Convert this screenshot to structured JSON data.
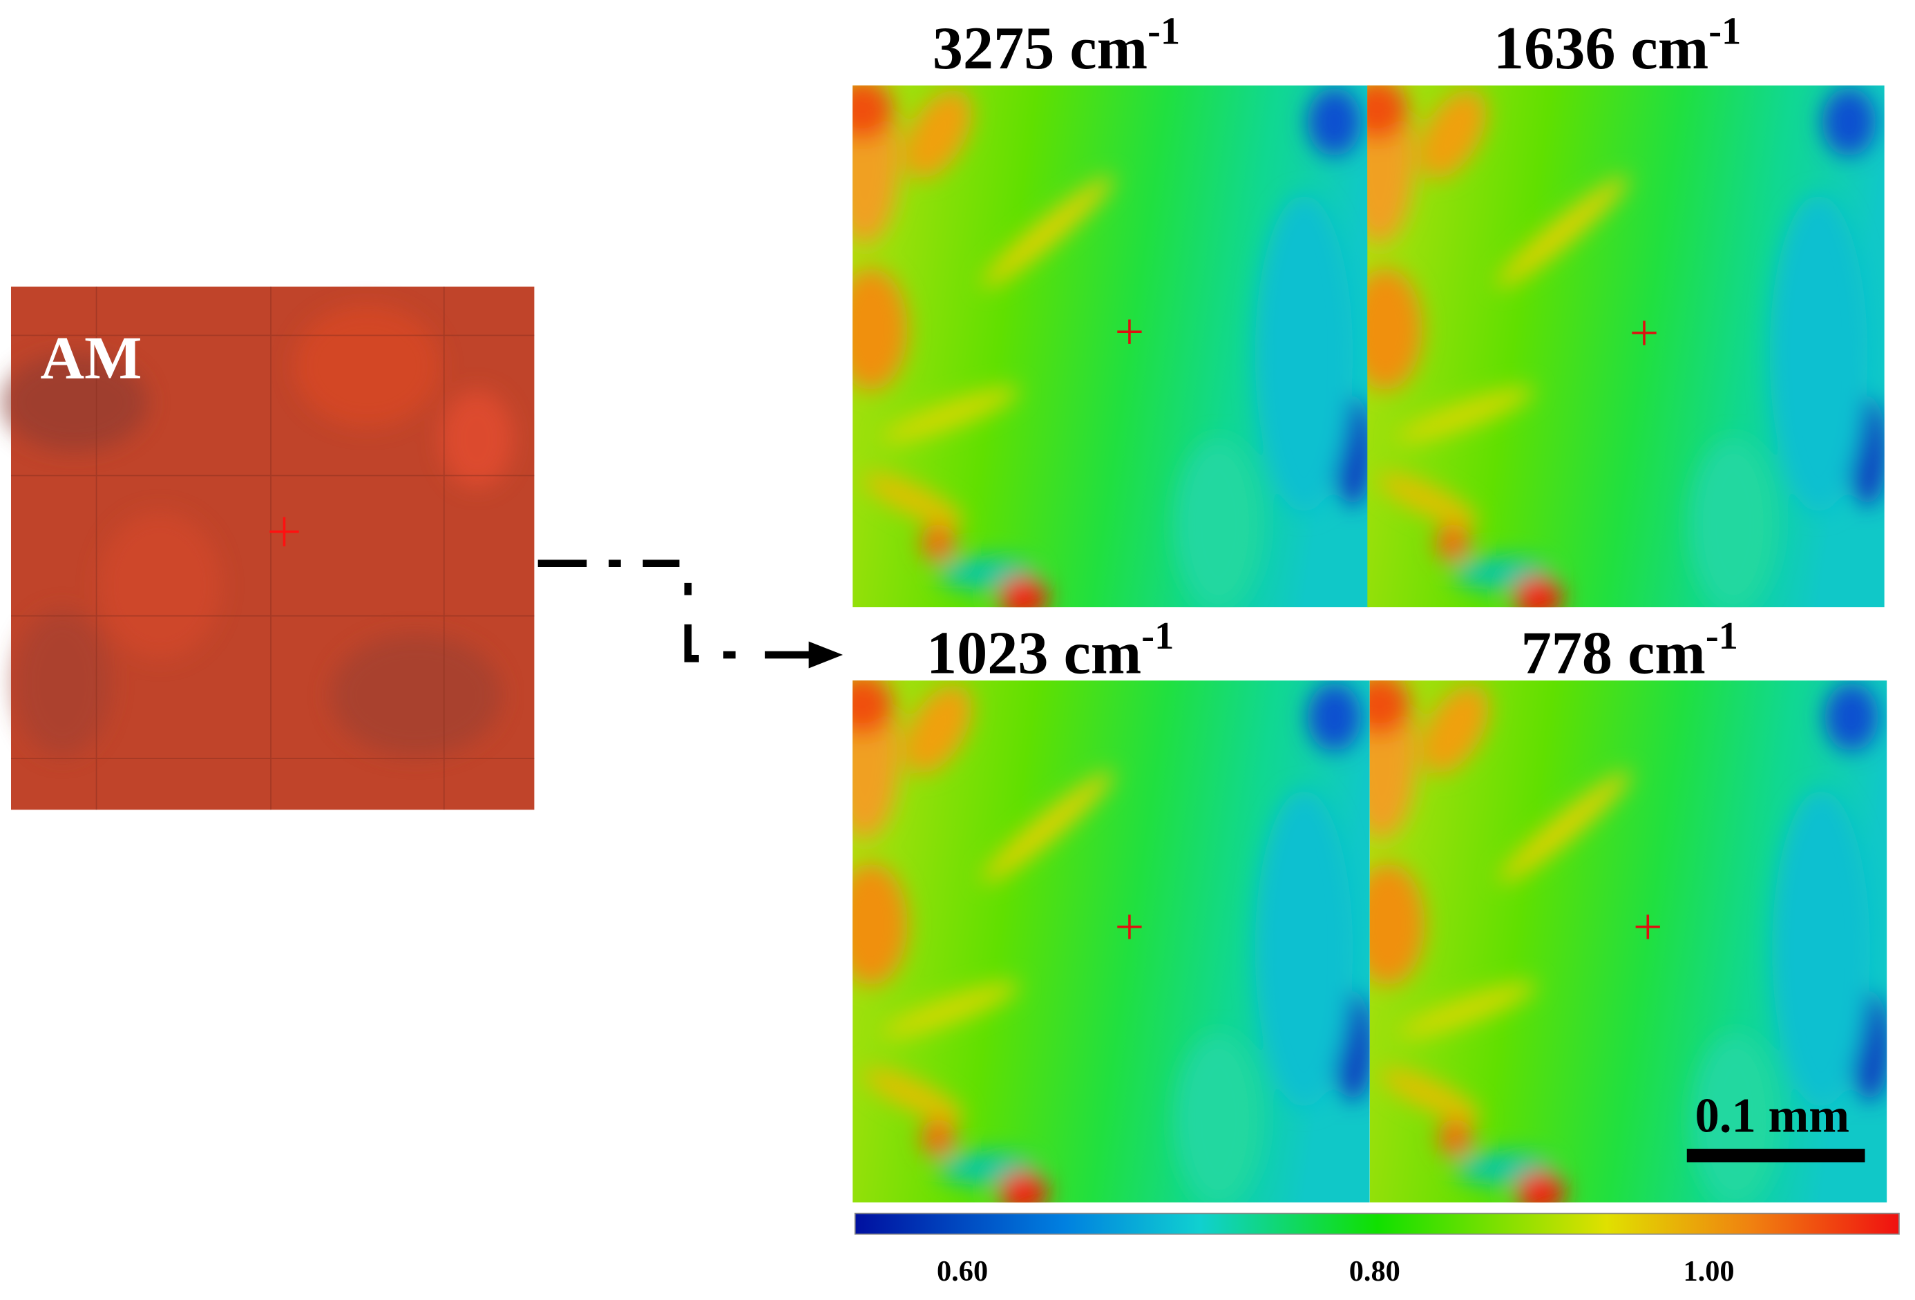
{
  "figure": {
    "label": "AM",
    "panels": [
      {
        "title": "3275 cm",
        "sup": "-1"
      },
      {
        "title": "1636 cm",
        "sup": "-1"
      },
      {
        "title": "1023 cm",
        "sup": "-1"
      },
      {
        "title": "778 cm",
        "sup": "-1"
      }
    ],
    "scale_bar": "0.1 mm",
    "colorbar": {
      "ticks": [
        "0.60",
        "0.80",
        "1.00"
      ]
    }
  }
}
